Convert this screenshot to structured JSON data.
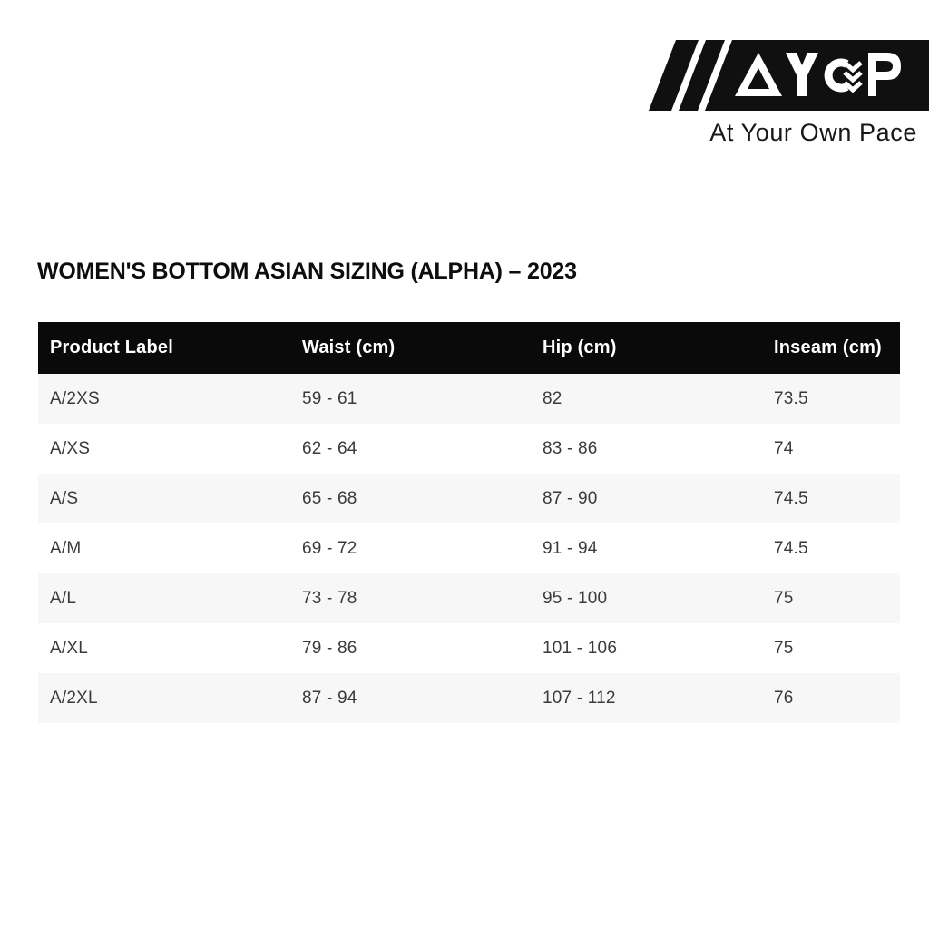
{
  "brand": {
    "logo_text": "AYOP",
    "tagline": "At Your Own Pace"
  },
  "page": {
    "title": "WOMEN'S BOTTOM ASIAN SIZING (ALPHA) – 2023"
  },
  "table": {
    "columns": [
      "Product Label",
      "Waist (cm)",
      "Hip (cm)",
      "Inseam (cm)"
    ],
    "rows": [
      [
        "A/2XS",
        "59 - 61",
        "82",
        "73.5"
      ],
      [
        "A/XS",
        "62 - 64",
        "83 - 86",
        "74"
      ],
      [
        "A/S",
        "65 - 68",
        "87 - 90",
        "74.5"
      ],
      [
        "A/M",
        "69 - 72",
        "91 - 94",
        "74.5"
      ],
      [
        "A/L",
        "73 - 78",
        "95 - 100",
        "75"
      ],
      [
        "A/XL",
        "79 - 86",
        "101 - 106",
        "75"
      ],
      [
        "A/2XL",
        "87 - 94",
        "107 - 112",
        "76"
      ]
    ]
  },
  "colors": {
    "header_bg": "#0a0a0a",
    "header_text": "#ffffff",
    "row_stripe": "#f7f7f7",
    "body_text": "#3a3a3a",
    "logo_black": "#101010",
    "title_text": "#0d0d0d",
    "tagline_text": "#17171c"
  }
}
